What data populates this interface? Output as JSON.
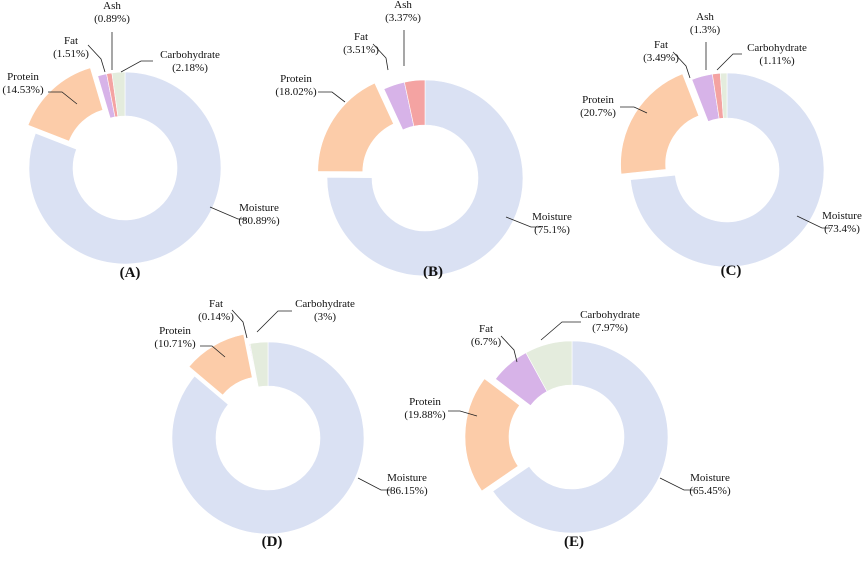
{
  "colors": {
    "Moisture": "#dae1f3",
    "Protein": "#fccca9",
    "Fat": "#d7b3e8",
    "Ash": "#f4a3a2",
    "Carbohydrate": "#e4ecdd"
  },
  "chart_data": [
    {
      "type": "pie",
      "donut": true,
      "panel_label": "(A)",
      "slices": [
        {
          "name": "Moisture",
          "value": 80.89,
          "label": "Moisture",
          "pct": "(80.89%)"
        },
        {
          "name": "Protein",
          "value": 14.53,
          "label": "Protein",
          "pct": "(14.53%)"
        },
        {
          "name": "Fat",
          "value": 1.51,
          "label": "Fat",
          "pct": "(1.51%)"
        },
        {
          "name": "Ash",
          "value": 0.89,
          "label": "Ash",
          "pct": "(0.89%)"
        },
        {
          "name": "Carbohydrate",
          "value": 2.18,
          "label": "Carbohydrate",
          "pct": "(2.18%)"
        }
      ]
    },
    {
      "type": "pie",
      "donut": true,
      "panel_label": "(B)",
      "slices": [
        {
          "name": "Moisture",
          "value": 75.1,
          "label": "Moisture",
          "pct": "(75.1%)"
        },
        {
          "name": "Protein",
          "value": 18.02,
          "label": "Protein",
          "pct": "(18.02%)"
        },
        {
          "name": "Fat",
          "value": 3.51,
          "label": "Fat",
          "pct": "(3.51%)"
        },
        {
          "name": "Ash",
          "value": 3.37,
          "label": "Ash",
          "pct": "(3.37%)"
        }
      ]
    },
    {
      "type": "pie",
      "donut": true,
      "panel_label": "(C)",
      "slices": [
        {
          "name": "Moisture",
          "value": 73.4,
          "label": "Moisture",
          "pct": "(73.4%)"
        },
        {
          "name": "Protein",
          "value": 20.7,
          "label": "Protein",
          "pct": "(20.7%)"
        },
        {
          "name": "Fat",
          "value": 3.49,
          "label": "Fat",
          "pct": "(3.49%)"
        },
        {
          "name": "Ash",
          "value": 1.3,
          "label": "Ash",
          "pct": "(1.3%)"
        },
        {
          "name": "Carbohydrate",
          "value": 1.11,
          "label": "Carbohydrate",
          "pct": "(1.11%)"
        }
      ]
    },
    {
      "type": "pie",
      "donut": true,
      "panel_label": "(D)",
      "slices": [
        {
          "name": "Moisture",
          "value": 86.15,
          "label": "Moisture",
          "pct": "(86.15%)"
        },
        {
          "name": "Protein",
          "value": 10.71,
          "label": "Protein",
          "pct": "(10.71%)"
        },
        {
          "name": "Fat",
          "value": 0.14,
          "label": "Fat",
          "pct": "(0.14%)"
        },
        {
          "name": "Carbohydrate",
          "value": 3,
          "label": "Carbohydrate",
          "pct": "(3%)"
        }
      ]
    },
    {
      "type": "pie",
      "donut": true,
      "panel_label": "(E)",
      "slices": [
        {
          "name": "Moisture",
          "value": 65.45,
          "label": "Moisture",
          "pct": "(65.45%)"
        },
        {
          "name": "Protein",
          "value": 19.88,
          "label": "Protein",
          "pct": "(19.88%)"
        },
        {
          "name": "Fat",
          "value": 6.7,
          "label": "Fat",
          "pct": "(6.7%)"
        },
        {
          "name": "Carbohydrate",
          "value": 7.97,
          "label": "Carbohydrate",
          "pct": "(7.97%)"
        }
      ]
    }
  ]
}
